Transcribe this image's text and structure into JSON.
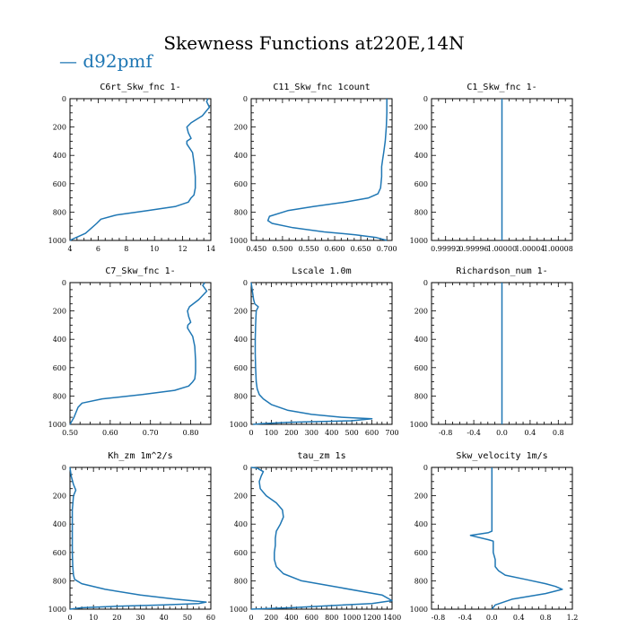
{
  "title": "Skewness Functions at220E,14N",
  "legend": {
    "label": "d92pmf",
    "color": "#1f77b4"
  },
  "chart_data": [
    {
      "type": "line",
      "title": "C6rt_Skw_fnc   1-",
      "xlim": [
        4,
        14
      ],
      "ylim": [
        1000,
        0
      ],
      "xticks": [
        4,
        6,
        8,
        10,
        12,
        14
      ],
      "xtick_labels": [
        "4",
        "6",
        "8",
        "10",
        "12",
        "14"
      ],
      "yticks": [
        0,
        200,
        400,
        600,
        800,
        1000
      ],
      "series": [
        {
          "x": [
            13.8,
            13.7,
            13.9,
            13.4,
            12.6,
            12.3,
            12.4,
            12.6,
            12.3,
            12.3,
            12.7,
            12.8,
            12.9,
            12.9,
            12.8,
            12.6,
            12.4,
            11.5,
            9.5,
            7.3,
            6.2,
            5.9,
            5.1,
            4.2,
            4.0
          ],
          "y": [
            0,
            20,
            60,
            120,
            170,
            200,
            240,
            280,
            300,
            320,
            380,
            450,
            550,
            630,
            680,
            700,
            730,
            760,
            790,
            820,
            850,
            880,
            950,
            990,
            1000
          ]
        }
      ]
    },
    {
      "type": "line",
      "title": "C11_Skw_fnc   1count",
      "xlim": [
        0.44,
        0.71
      ],
      "ylim": [
        1000,
        0
      ],
      "xticks": [
        0.45,
        0.5,
        0.55,
        0.6,
        0.65,
        0.7
      ],
      "xtick_labels": [
        "0.450",
        "0.500",
        "0.550",
        "0.600",
        "0.650",
        "0.700"
      ],
      "yticks": [
        0,
        200,
        400,
        600,
        800,
        1000
      ],
      "series": [
        {
          "x": [
            0.7,
            0.7,
            0.699,
            0.697,
            0.694,
            0.692,
            0.69,
            0.69,
            0.688,
            0.683,
            0.665,
            0.62,
            0.56,
            0.51,
            0.475,
            0.472,
            0.48,
            0.52,
            0.58,
            0.64,
            0.68,
            0.7
          ],
          "y": [
            0,
            100,
            200,
            300,
            380,
            430,
            480,
            550,
            630,
            670,
            700,
            730,
            760,
            790,
            830,
            860,
            880,
            910,
            940,
            960,
            980,
            1000
          ]
        }
      ]
    },
    {
      "type": "line",
      "title": "C1_Skw_fnc   1-",
      "xlim": [
        0.9999,
        1.0001
      ],
      "ylim": [
        1000,
        0
      ],
      "xticks": [
        0.99992,
        0.99996,
        1.0,
        1.00004,
        1.00008
      ],
      "xtick_labels": [
        "0.99992",
        "0.99996",
        "1.00000",
        "1.00004",
        "1.00008"
      ],
      "yticks": [
        0,
        200,
        400,
        600,
        800,
        1000
      ],
      "series": [
        {
          "x": [
            1.0,
            1.0
          ],
          "y": [
            0,
            1000
          ]
        }
      ]
    },
    {
      "type": "line",
      "title": "C7_Skw_fnc   1-",
      "xlim": [
        0.5,
        0.85
      ],
      "ylim": [
        1000,
        0
      ],
      "xticks": [
        0.5,
        0.6,
        0.7,
        0.8
      ],
      "xtick_labels": [
        "0.50",
        "0.60",
        "0.70",
        "0.80"
      ],
      "yticks": [
        0,
        200,
        400,
        600,
        800,
        1000
      ],
      "series": [
        {
          "x": [
            0.835,
            0.83,
            0.84,
            0.82,
            0.797,
            0.792,
            0.795,
            0.8,
            0.793,
            0.792,
            0.805,
            0.81,
            0.812,
            0.812,
            0.81,
            0.805,
            0.795,
            0.76,
            0.68,
            0.58,
            0.53,
            0.52,
            0.51,
            0.5
          ],
          "y": [
            0,
            20,
            60,
            120,
            170,
            200,
            240,
            280,
            300,
            320,
            380,
            450,
            550,
            630,
            680,
            700,
            730,
            760,
            790,
            820,
            850,
            880,
            950,
            1000
          ]
        }
      ]
    },
    {
      "type": "line",
      "title": "Lscale   1.0m",
      "xlim": [
        0,
        700
      ],
      "ylim": [
        1000,
        0
      ],
      "xticks": [
        0,
        100,
        200,
        300,
        400,
        500,
        600,
        700
      ],
      "xtick_labels": [
        "0",
        "100",
        "200",
        "300",
        "400",
        "500",
        "600",
        "700"
      ],
      "yticks": [
        0,
        200,
        400,
        600,
        800,
        1000
      ],
      "series": [
        {
          "x": [
            0,
            5,
            12,
            18,
            35,
            25,
            22,
            20,
            20,
            22,
            25,
            30,
            40,
            60,
            100,
            180,
            300,
            450,
            600,
            500,
            200,
            50,
            10
          ],
          "y": [
            0,
            50,
            120,
            150,
            170,
            200,
            300,
            400,
            500,
            600,
            700,
            750,
            790,
            820,
            860,
            900,
            930,
            950,
            960,
            975,
            985,
            995,
            1000
          ]
        }
      ]
    },
    {
      "type": "line",
      "title": "Richardson_num   1-",
      "xlim": [
        -1,
        1
      ],
      "ylim": [
        1000,
        0
      ],
      "xticks": [
        -0.8,
        -0.4,
        0.0,
        0.4,
        0.8
      ],
      "xtick_labels": [
        "-0.8",
        "-0.4",
        "0.0",
        "0.4",
        "0.8"
      ],
      "yticks": [
        0,
        200,
        400,
        600,
        800,
        1000
      ],
      "series": [
        {
          "x": [
            0.0,
            0.0
          ],
          "y": [
            0,
            1000
          ]
        }
      ]
    },
    {
      "type": "line",
      "title": "Kh_zm   1m^2/s",
      "xlim": [
        0,
        60
      ],
      "ylim": [
        1000,
        0
      ],
      "xticks": [
        0,
        10,
        20,
        30,
        40,
        50,
        60
      ],
      "xtick_labels": [
        "0",
        "10",
        "20",
        "30",
        "40",
        "50",
        "60"
      ],
      "yticks": [
        0,
        200,
        400,
        600,
        800,
        1000
      ],
      "series": [
        {
          "x": [
            0,
            0.5,
            1.5,
            2.5,
            1.5,
            1,
            1,
            1,
            1,
            1.2,
            1.5,
            2,
            5,
            15,
            30,
            45,
            58,
            55,
            40,
            20,
            5,
            0
          ],
          "y": [
            0,
            60,
            120,
            160,
            200,
            300,
            400,
            500,
            600,
            700,
            760,
            790,
            820,
            860,
            900,
            930,
            950,
            960,
            970,
            980,
            990,
            1000
          ]
        }
      ]
    },
    {
      "type": "line",
      "title": "tau_zm   1s",
      "xlim": [
        0,
        1400
      ],
      "ylim": [
        1000,
        0
      ],
      "xticks": [
        0,
        200,
        400,
        600,
        800,
        1000,
        1200,
        1400
      ],
      "xtick_labels": [
        "0",
        "200",
        "400",
        "600",
        "800",
        "1000",
        "1200",
        "1400"
      ],
      "yticks": [
        0,
        200,
        400,
        600,
        800,
        1000
      ],
      "series": [
        {
          "x": [
            0,
            60,
            120,
            100,
            80,
            90,
            150,
            250,
            310,
            320,
            290,
            250,
            240,
            240,
            230,
            230,
            250,
            320,
            500,
            900,
            1300,
            1400,
            1200,
            800,
            400,
            0
          ],
          "y": [
            0,
            5,
            30,
            60,
            100,
            150,
            200,
            250,
            300,
            350,
            400,
            450,
            500,
            550,
            600,
            650,
            700,
            750,
            800,
            850,
            900,
            940,
            960,
            975,
            990,
            1000
          ]
        }
      ]
    },
    {
      "type": "line",
      "title": "Skw_velocity   1m/s",
      "xlim": [
        -0.9,
        1.2
      ],
      "ylim": [
        1000,
        0
      ],
      "xticks": [
        -0.8,
        -0.4,
        0.0,
        0.4,
        0.8,
        1.2
      ],
      "xtick_labels": [
        "-0.8",
        "-0.4",
        "0.0",
        "0.4",
        "0.8",
        "1.2"
      ],
      "yticks": [
        0,
        200,
        400,
        600,
        800,
        1000
      ],
      "series": [
        {
          "x": [
            0.0,
            0.0,
            0.0,
            0.0,
            0.0,
            0.0,
            -0.05,
            -0.32,
            -0.05,
            0.02,
            0.02,
            0.05,
            0.05,
            0.1,
            0.2,
            0.5,
            0.8,
            0.95,
            1.05,
            0.8,
            0.3,
            0.05,
            0.0
          ],
          "y": [
            0,
            100,
            200,
            300,
            400,
            450,
            460,
            480,
            510,
            520,
            600,
            650,
            700,
            730,
            760,
            790,
            820,
            840,
            860,
            890,
            930,
            970,
            1000
          ]
        }
      ]
    }
  ]
}
